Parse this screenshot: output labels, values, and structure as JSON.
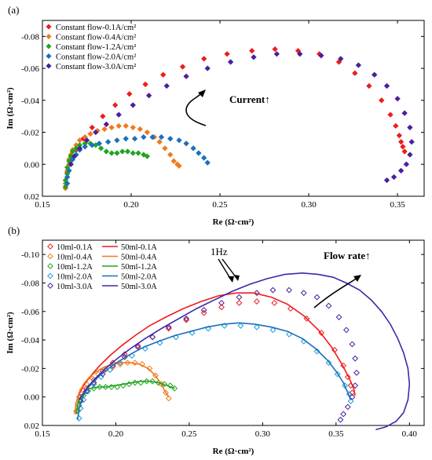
{
  "chart_data": [
    {
      "type": "scatter",
      "panel_label": "(a)",
      "xlabel": "Re (Ω·cm²)",
      "ylabel": "Im (Ω·cm²)",
      "xlim": [
        0.15,
        0.365
      ],
      "ylim": [
        0.02,
        -0.09
      ],
      "x_ticks": [
        "0.15",
        "0.20",
        "0.25",
        "0.30",
        "0.35"
      ],
      "y_ticks": [
        "-0.08",
        "-0.06",
        "-0.04",
        "-0.02",
        "0.00",
        "0.02"
      ],
      "legend_position": "top-left",
      "annotation": "Current↑",
      "series": [
        {
          "name": "Constant flow-0.1A/cm²",
          "color": "#ee1c1c",
          "marker": "diamond",
          "x": [
            0.164,
            0.166,
            0.169,
            0.173,
            0.178,
            0.184,
            0.191,
            0.199,
            0.208,
            0.218,
            0.229,
            0.241,
            0.254,
            0.268,
            0.281,
            0.294,
            0.306,
            0.317,
            0.326,
            0.334,
            0.341,
            0.346,
            0.349,
            0.351,
            0.352,
            0.353,
            0.354
          ],
          "y": [
            0.005,
            -0.002,
            -0.009,
            -0.016,
            -0.023,
            -0.03,
            -0.037,
            -0.044,
            -0.05,
            -0.056,
            -0.061,
            -0.066,
            -0.069,
            -0.071,
            -0.072,
            -0.071,
            -0.069,
            -0.064,
            -0.057,
            -0.049,
            -0.04,
            -0.031,
            -0.024,
            -0.018,
            -0.014,
            -0.011,
            -0.008
          ]
        },
        {
          "name": "Constant flow-0.4A/cm²",
          "color": "#f07a1a",
          "marker": "diamond",
          "x": [
            0.163,
            0.163,
            0.164,
            0.164,
            0.165,
            0.165,
            0.166,
            0.167,
            0.169,
            0.171,
            0.174,
            0.177,
            0.181,
            0.185,
            0.189,
            0.193,
            0.197,
            0.201,
            0.205,
            0.209,
            0.213,
            0.216,
            0.219,
            0.222,
            0.224,
            0.226,
            0.227
          ],
          "y": [
            0.015,
            0.012,
            0.008,
            0.004,
            0.0,
            -0.003,
            -0.006,
            -0.009,
            -0.012,
            -0.015,
            -0.017,
            -0.019,
            -0.021,
            -0.022,
            -0.023,
            -0.024,
            -0.024,
            -0.023,
            -0.022,
            -0.02,
            -0.017,
            -0.014,
            -0.01,
            -0.006,
            -0.002,
            0.0,
            0.001
          ]
        },
        {
          "name": "Constant flow-1.2A/cm²",
          "color": "#1fa51f",
          "marker": "diamond",
          "x": [
            0.163,
            0.163,
            0.164,
            0.164,
            0.165,
            0.166,
            0.167,
            0.169,
            0.171,
            0.174,
            0.177,
            0.18,
            0.183,
            0.186,
            0.189,
            0.192,
            0.195,
            0.198,
            0.201,
            0.204,
            0.207,
            0.209
          ],
          "y": [
            0.014,
            0.01,
            0.006,
            0.002,
            -0.002,
            -0.005,
            -0.008,
            -0.01,
            -0.012,
            -0.013,
            -0.013,
            -0.012,
            -0.01,
            -0.008,
            -0.007,
            -0.007,
            -0.008,
            -0.008,
            -0.007,
            -0.007,
            -0.006,
            -0.005
          ]
        },
        {
          "name": "Constant flow-2.0A/cm²",
          "color": "#1a6fbf",
          "marker": "diamond",
          "x": [
            0.164,
            0.164,
            0.165,
            0.166,
            0.167,
            0.169,
            0.171,
            0.174,
            0.178,
            0.182,
            0.187,
            0.192,
            0.197,
            0.202,
            0.207,
            0.212,
            0.217,
            0.222,
            0.227,
            0.231,
            0.235,
            0.238,
            0.241,
            0.243
          ],
          "y": [
            0.012,
            0.008,
            0.004,
            0.0,
            -0.003,
            -0.006,
            -0.009,
            -0.011,
            -0.012,
            -0.013,
            -0.014,
            -0.015,
            -0.016,
            -0.016,
            -0.017,
            -0.017,
            -0.017,
            -0.016,
            -0.015,
            -0.013,
            -0.01,
            -0.007,
            -0.004,
            -0.001
          ]
        },
        {
          "name": "Constant flow-3.0A/cm²",
          "color": "#4b1f9e",
          "marker": "diamond",
          "x": [
            0.166,
            0.168,
            0.171,
            0.175,
            0.18,
            0.186,
            0.193,
            0.201,
            0.21,
            0.22,
            0.231,
            0.243,
            0.256,
            0.269,
            0.282,
            0.295,
            0.307,
            0.318,
            0.328,
            0.337,
            0.344,
            0.35,
            0.354,
            0.357,
            0.358,
            0.357,
            0.355,
            0.352,
            0.348,
            0.344
          ],
          "y": [
            0.0,
            -0.005,
            -0.01,
            -0.015,
            -0.02,
            -0.025,
            -0.031,
            -0.037,
            -0.043,
            -0.049,
            -0.055,
            -0.06,
            -0.064,
            -0.067,
            -0.069,
            -0.069,
            -0.068,
            -0.066,
            -0.062,
            -0.056,
            -0.049,
            -0.041,
            -0.032,
            -0.023,
            -0.014,
            -0.006,
            0.0,
            0.004,
            0.008,
            0.01
          ]
        }
      ]
    },
    {
      "type": "scatter",
      "panel_label": "(b)",
      "xlabel": "Re (Ω·cm²)",
      "ylabel": "Im (Ω·cm²)",
      "xlim": [
        0.15,
        0.41
      ],
      "ylim": [
        0.02,
        -0.11
      ],
      "x_ticks": [
        "0.15",
        "0.20",
        "0.25",
        "0.30",
        "0.35",
        "0.40"
      ],
      "y_ticks": [
        "-0.10",
        "-0.08",
        "-0.06",
        "-0.04",
        "-0.02",
        "0.00",
        "0.02"
      ],
      "legend_position": "top-left",
      "annotations": [
        "1Hz",
        "Flow rate↑"
      ],
      "series": [
        {
          "name": "10ml-0.1A",
          "color": "#ee1c1c",
          "marker": "open-diamond",
          "x": [
            0.176,
            0.18,
            0.185,
            0.191,
            0.198,
            0.206,
            0.215,
            0.225,
            0.236,
            0.248,
            0.26,
            0.272,
            0.284,
            0.296,
            0.308,
            0.319,
            0.33,
            0.34,
            0.349,
            0.355,
            0.358,
            0.36,
            0.361
          ],
          "y": [
            0.0,
            -0.006,
            -0.012,
            -0.018,
            -0.024,
            -0.03,
            -0.036,
            -0.042,
            -0.048,
            -0.054,
            -0.059,
            -0.063,
            -0.066,
            -0.067,
            -0.066,
            -0.062,
            -0.055,
            -0.045,
            -0.033,
            -0.022,
            -0.014,
            -0.008,
            -0.003
          ]
        },
        {
          "name": "10ml-0.4A",
          "color": "#f07a1a",
          "marker": "open-diamond",
          "x": [
            0.173,
            0.174,
            0.175,
            0.177,
            0.18,
            0.184,
            0.188,
            0.193,
            0.198,
            0.203,
            0.208,
            0.213,
            0.218,
            0.223,
            0.227,
            0.231,
            0.234,
            0.236
          ],
          "y": [
            0.01,
            0.005,
            0.0,
            -0.005,
            -0.009,
            -0.013,
            -0.016,
            -0.019,
            -0.021,
            -0.023,
            -0.024,
            -0.024,
            -0.023,
            -0.02,
            -0.015,
            -0.009,
            -0.003,
            0.001
          ]
        },
        {
          "name": "10ml-1.2A",
          "color": "#1fa51f",
          "marker": "open-diamond",
          "x": [
            0.174,
            0.175,
            0.176,
            0.178,
            0.181,
            0.185,
            0.189,
            0.193,
            0.197,
            0.201,
            0.205,
            0.209,
            0.213,
            0.217,
            0.221,
            0.225,
            0.229,
            0.233,
            0.237,
            0.24
          ],
          "y": [
            0.01,
            0.006,
            0.002,
            -0.001,
            -0.004,
            -0.006,
            -0.007,
            -0.007,
            -0.007,
            -0.007,
            -0.008,
            -0.009,
            -0.01,
            -0.01,
            -0.011,
            -0.011,
            -0.01,
            -0.009,
            -0.008,
            -0.006
          ]
        },
        {
          "name": "10ml-2.0A",
          "color": "#1a9bd6",
          "marker": "open-diamond",
          "x": [
            0.175,
            0.176,
            0.178,
            0.181,
            0.185,
            0.19,
            0.196,
            0.203,
            0.211,
            0.22,
            0.23,
            0.241,
            0.252,
            0.263,
            0.274,
            0.285,
            0.296,
            0.307,
            0.318,
            0.328,
            0.337,
            0.345,
            0.351,
            0.356,
            0.359,
            0.36
          ],
          "y": [
            0.015,
            0.008,
            0.002,
            -0.004,
            -0.009,
            -0.014,
            -0.019,
            -0.024,
            -0.029,
            -0.034,
            -0.038,
            -0.042,
            -0.045,
            -0.048,
            -0.05,
            -0.05,
            -0.049,
            -0.047,
            -0.044,
            -0.039,
            -0.032,
            -0.024,
            -0.016,
            -0.008,
            -0.002,
            0.003
          ]
        },
        {
          "name": "10ml-3.0A",
          "color": "#4b1f9e",
          "marker": "open-diamond",
          "x": [
            0.176,
            0.18,
            0.185,
            0.191,
            0.198,
            0.206,
            0.215,
            0.225,
            0.236,
            0.248,
            0.26,
            0.272,
            0.284,
            0.296,
            0.307,
            0.318,
            0.328,
            0.337,
            0.345,
            0.352,
            0.357,
            0.361,
            0.363,
            0.364,
            0.363,
            0.361,
            0.358,
            0.355,
            0.353
          ],
          "y": [
            0.003,
            -0.004,
            -0.01,
            -0.016,
            -0.022,
            -0.028,
            -0.035,
            -0.042,
            -0.049,
            -0.055,
            -0.061,
            -0.066,
            -0.07,
            -0.073,
            -0.075,
            -0.075,
            -0.073,
            -0.07,
            -0.064,
            -0.056,
            -0.047,
            -0.037,
            -0.027,
            -0.017,
            -0.008,
            0.0,
            0.007,
            0.012,
            0.016
          ]
        },
        {
          "name": "50ml-0.1A",
          "color": "#ee1c1c",
          "marker": "line",
          "x": [
            0.174,
            0.178,
            0.183,
            0.189,
            0.196,
            0.204,
            0.213,
            0.223,
            0.234,
            0.246,
            0.258,
            0.27,
            0.282,
            0.294,
            0.306,
            0.317,
            0.328,
            0.338,
            0.347,
            0.354,
            0.359,
            0.362,
            0.363
          ],
          "y": [
            0.0,
            -0.008,
            -0.015,
            -0.022,
            -0.029,
            -0.036,
            -0.043,
            -0.05,
            -0.056,
            -0.062,
            -0.067,
            -0.071,
            -0.073,
            -0.073,
            -0.07,
            -0.065,
            -0.057,
            -0.047,
            -0.035,
            -0.023,
            -0.013,
            -0.006,
            -0.001
          ]
        },
        {
          "name": "50ml-0.4A",
          "color": "#f07a1a",
          "marker": "line",
          "x": [
            0.172,
            0.173,
            0.175,
            0.178,
            0.182,
            0.187,
            0.192,
            0.198,
            0.204,
            0.21,
            0.216,
            0.222,
            0.227,
            0.231,
            0.234,
            0.236
          ],
          "y": [
            0.012,
            0.004,
            -0.003,
            -0.009,
            -0.014,
            -0.018,
            -0.021,
            -0.023,
            -0.024,
            -0.024,
            -0.023,
            -0.02,
            -0.015,
            -0.009,
            -0.003,
            0.0
          ]
        },
        {
          "name": "50ml-1.2A",
          "color": "#1fa51f",
          "marker": "line",
          "x": [
            0.173,
            0.174,
            0.176,
            0.179,
            0.183,
            0.188,
            0.193,
            0.199,
            0.205,
            0.211,
            0.217,
            0.223,
            0.229,
            0.235,
            0.24
          ],
          "y": [
            0.012,
            0.005,
            0.0,
            -0.004,
            -0.006,
            -0.007,
            -0.007,
            -0.008,
            -0.009,
            -0.01,
            -0.011,
            -0.011,
            -0.01,
            -0.008,
            -0.006
          ]
        },
        {
          "name": "50ml-2.0A",
          "color": "#1a6fbf",
          "marker": "line",
          "x": [
            0.174,
            0.175,
            0.177,
            0.18,
            0.184,
            0.189,
            0.195,
            0.202,
            0.21,
            0.219,
            0.229,
            0.24,
            0.251,
            0.262,
            0.273,
            0.284,
            0.295,
            0.306,
            0.317,
            0.327,
            0.336,
            0.344,
            0.35,
            0.355,
            0.358,
            0.36
          ],
          "y": [
            0.016,
            0.008,
            0.001,
            -0.005,
            -0.01,
            -0.015,
            -0.02,
            -0.025,
            -0.03,
            -0.035,
            -0.039,
            -0.043,
            -0.046,
            -0.049,
            -0.051,
            -0.052,
            -0.051,
            -0.049,
            -0.046,
            -0.041,
            -0.034,
            -0.026,
            -0.018,
            -0.01,
            -0.003,
            0.002
          ]
        },
        {
          "name": "50ml-3.0A",
          "color": "#3a2aa8",
          "marker": "line",
          "x": [
            0.175,
            0.18,
            0.186,
            0.193,
            0.201,
            0.21,
            0.22,
            0.231,
            0.243,
            0.255,
            0.267,
            0.279,
            0.291,
            0.303,
            0.315,
            0.327,
            0.338,
            0.348,
            0.357,
            0.366,
            0.374,
            0.381,
            0.387,
            0.392,
            0.396,
            0.399,
            0.4,
            0.399,
            0.396,
            0.391,
            0.384,
            0.377
          ],
          "y": [
            0.002,
            -0.006,
            -0.013,
            -0.02,
            -0.027,
            -0.034,
            -0.041,
            -0.048,
            -0.055,
            -0.062,
            -0.068,
            -0.074,
            -0.079,
            -0.083,
            -0.086,
            -0.087,
            -0.086,
            -0.084,
            -0.08,
            -0.075,
            -0.068,
            -0.06,
            -0.051,
            -0.041,
            -0.031,
            -0.02,
            -0.009,
            0.002,
            0.011,
            0.017,
            0.021,
            0.023
          ]
        }
      ]
    }
  ]
}
